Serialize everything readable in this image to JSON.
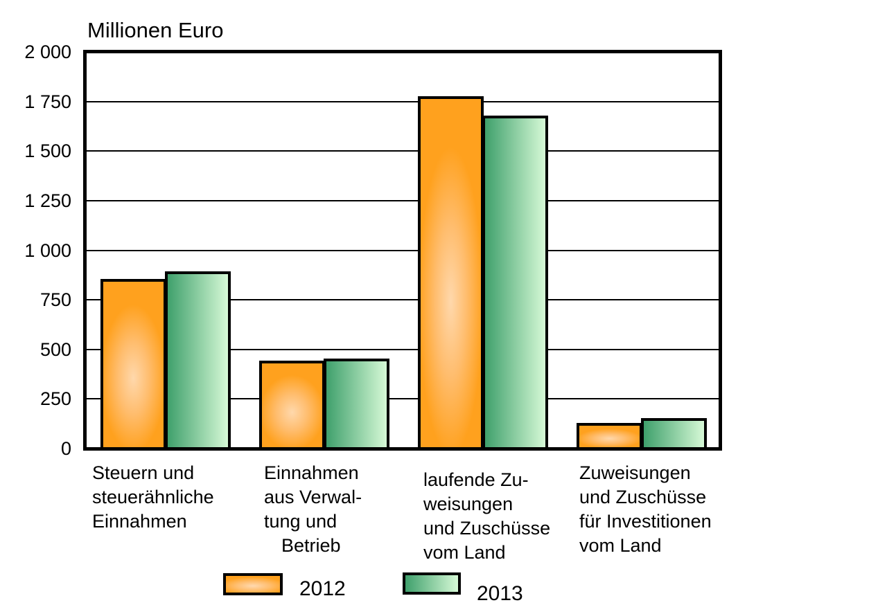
{
  "chart_data": {
    "type": "bar",
    "title": "Millionen Euro",
    "ylabel": "Millionen Euro",
    "xlabel": "",
    "ylim": [
      0,
      2000
    ],
    "ytick_values": [
      0,
      250,
      500,
      750,
      1000,
      1250,
      1500,
      1750,
      2000
    ],
    "ytick_labels": [
      "0",
      "250",
      "500",
      "750",
      "1 000",
      "1 250",
      "1 500",
      "1 750",
      "2 000"
    ],
    "grid": true,
    "legend_position": "bottom",
    "categories": [
      {
        "name": "Steuern und steuerähnliche Einnahmen",
        "lines": [
          "Steuern und",
          "steuerähnliche",
          "Einnahmen"
        ]
      },
      {
        "name": "Einnahmen aus Verwaltung und Betrieb",
        "lines": [
          "Einnahmen",
          "aus Verwal-",
          "tung und",
          "Betrieb"
        ]
      },
      {
        "name": "laufende Zuweisungen und Zuschüsse vom Land",
        "lines": [
          "laufende Zu-",
          "weisungen",
          "und Zuschüsse",
          "vom Land"
        ]
      },
      {
        "name": "Zuweisungen und Zuschüsse für Investitionen vom Land",
        "lines": [
          "Zuweisungen",
          "und Zuschüsse",
          "für Investitionen",
          "vom Land"
        ]
      }
    ],
    "series": [
      {
        "name": "2012",
        "values": [
          855,
          445,
          1775,
          130
        ],
        "color": "#FFA11E",
        "color_light": "#FFD8AC",
        "gradient": "box"
      },
      {
        "name": "2013",
        "values": [
          895,
          455,
          1680,
          155
        ],
        "color": "#3FA06C",
        "color_light": "#D6F9D6",
        "gradient": "horizontal"
      }
    ]
  },
  "colors": {
    "background": "#ffffff",
    "axis": "#000000",
    "text": "#000000",
    "series_2012": "#FFA11E",
    "series_2013": "#3FA06C"
  }
}
